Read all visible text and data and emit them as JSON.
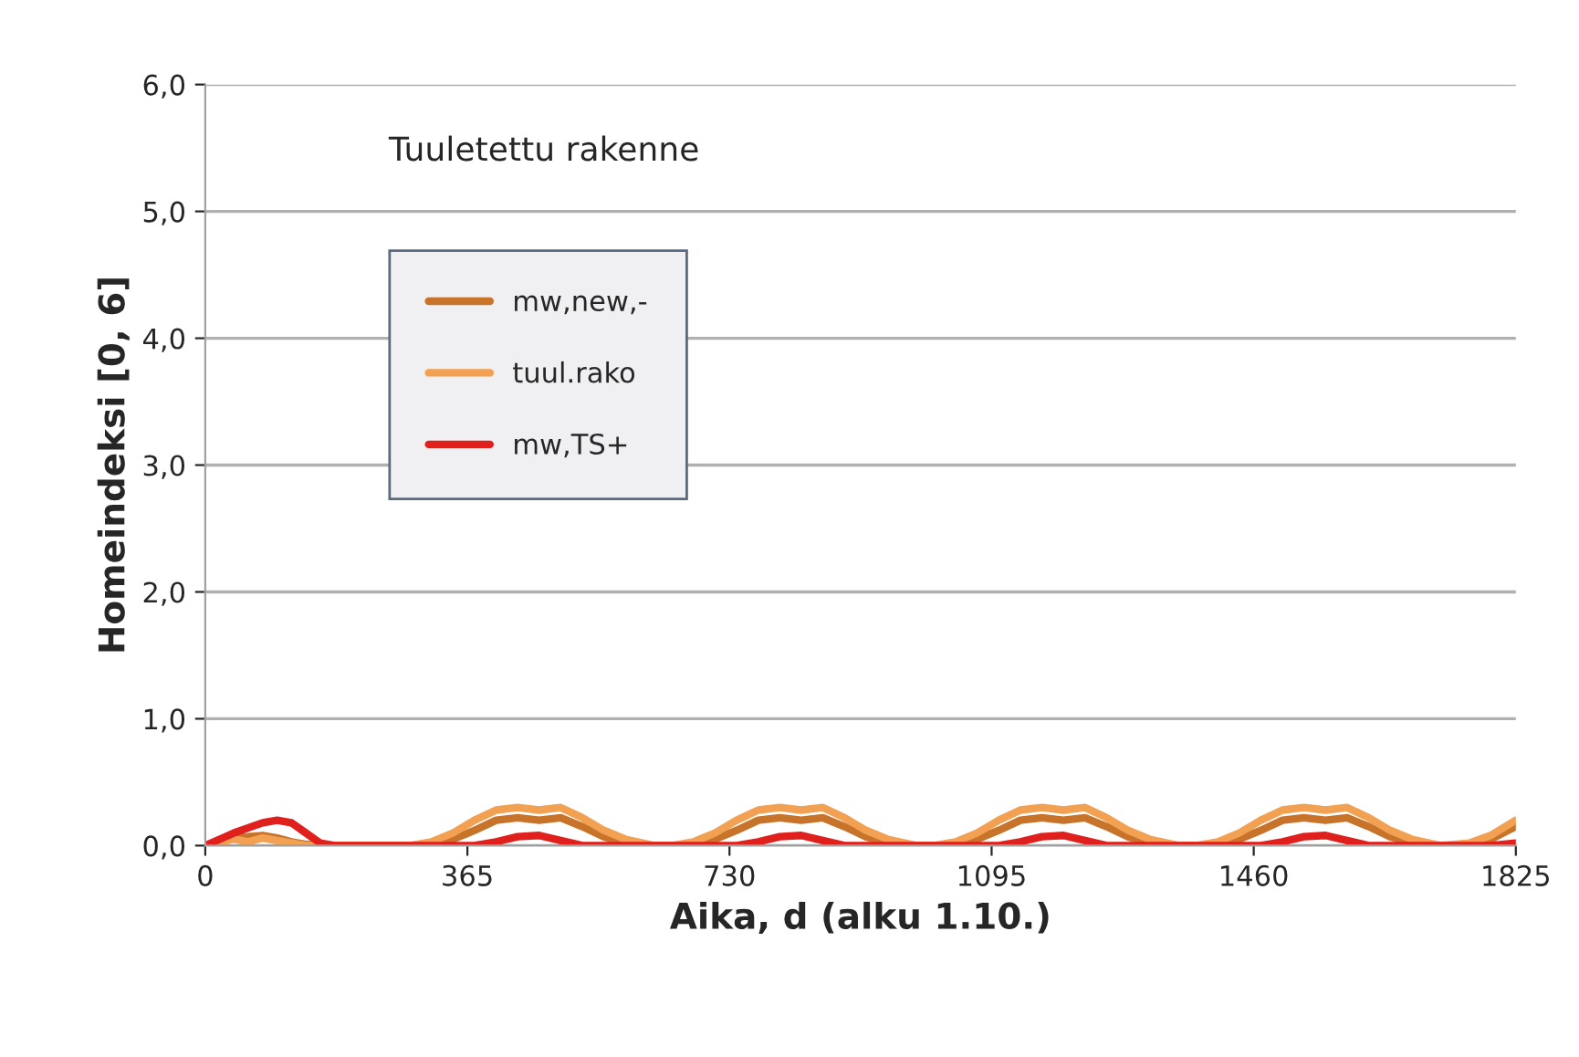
{
  "chart_data": {
    "type": "line",
    "xlabel": "Aika, d (alku 1.10.)",
    "ylabel": "Homeindeksi [0, 6]",
    "annotations": [
      "Tuuletettu rakenne"
    ],
    "x": [
      0,
      20,
      40,
      60,
      80,
      100,
      120,
      140,
      160,
      180,
      285,
      315,
      345,
      375,
      405,
      435,
      465,
      495,
      525,
      555,
      585,
      625,
      650,
      680,
      710,
      740,
      770,
      800,
      830,
      860,
      890,
      920,
      950,
      990,
      1015,
      1045,
      1075,
      1105,
      1135,
      1165,
      1195,
      1225,
      1255,
      1285,
      1315,
      1355,
      1380,
      1410,
      1440,
      1470,
      1500,
      1530,
      1560,
      1590,
      1620,
      1650,
      1680,
      1720,
      1760,
      1790,
      1825
    ],
    "series": [
      {
        "name": "mw,new,-",
        "color": "#c8732a",
        "values": [
          0,
          0.03,
          0.06,
          0.07,
          0.08,
          0.06,
          0.03,
          0.01,
          0,
          0,
          0,
          0,
          0.05,
          0.12,
          0.2,
          0.22,
          0.2,
          0.22,
          0.15,
          0.07,
          0.02,
          0,
          0,
          0,
          0.05,
          0.12,
          0.2,
          0.22,
          0.2,
          0.22,
          0.15,
          0.07,
          0.02,
          0,
          0,
          0,
          0.05,
          0.12,
          0.2,
          0.22,
          0.2,
          0.22,
          0.15,
          0.07,
          0.02,
          0,
          0,
          0,
          0.05,
          0.12,
          0.2,
          0.22,
          0.2,
          0.22,
          0.15,
          0.07,
          0.02,
          0,
          0,
          0.05,
          0.15
        ]
      },
      {
        "name": "tuul.rako",
        "color": "#f2a052",
        "values": [
          0,
          0.03,
          0.05,
          0.03,
          0.06,
          0.04,
          0.02,
          0,
          0,
          0,
          0,
          0.03,
          0.1,
          0.2,
          0.28,
          0.3,
          0.28,
          0.3,
          0.22,
          0.12,
          0.05,
          0,
          0,
          0.03,
          0.1,
          0.2,
          0.28,
          0.3,
          0.28,
          0.3,
          0.22,
          0.12,
          0.05,
          0,
          0,
          0.03,
          0.1,
          0.2,
          0.28,
          0.3,
          0.28,
          0.3,
          0.22,
          0.12,
          0.05,
          0,
          0,
          0.03,
          0.1,
          0.2,
          0.28,
          0.3,
          0.28,
          0.3,
          0.22,
          0.12,
          0.05,
          0,
          0.02,
          0.08,
          0.2
        ]
      },
      {
        "name": "mw,TS+",
        "color": "#e0201c",
        "values": [
          0,
          0.05,
          0.1,
          0.14,
          0.18,
          0.2,
          0.18,
          0.1,
          0.02,
          0,
          0,
          0,
          0,
          0,
          0.03,
          0.07,
          0.08,
          0.04,
          0,
          0,
          0,
          0,
          0,
          0,
          0,
          0,
          0.03,
          0.07,
          0.08,
          0.04,
          0,
          0,
          0,
          0,
          0,
          0,
          0,
          0,
          0.03,
          0.07,
          0.08,
          0.04,
          0,
          0,
          0,
          0,
          0,
          0,
          0,
          0,
          0.03,
          0.07,
          0.08,
          0.04,
          0,
          0,
          0,
          0,
          0,
          0,
          0.02
        ]
      }
    ],
    "xlim": [
      0,
      1825
    ],
    "xticks": [
      0,
      365,
      730,
      1095,
      1460,
      1825
    ],
    "ylim": [
      0,
      6
    ],
    "yticks": [
      {
        "value": 0,
        "label": "0,0"
      },
      {
        "value": 1,
        "label": "1,0"
      },
      {
        "value": 2,
        "label": "2,0"
      },
      {
        "value": 3,
        "label": "3,0"
      },
      {
        "value": 4,
        "label": "4,0"
      },
      {
        "value": 5,
        "label": "5,0"
      },
      {
        "value": 6,
        "label": "6,0"
      }
    ],
    "grid": "y",
    "legend": "top left",
    "line_style": "solid",
    "marker": "none"
  }
}
